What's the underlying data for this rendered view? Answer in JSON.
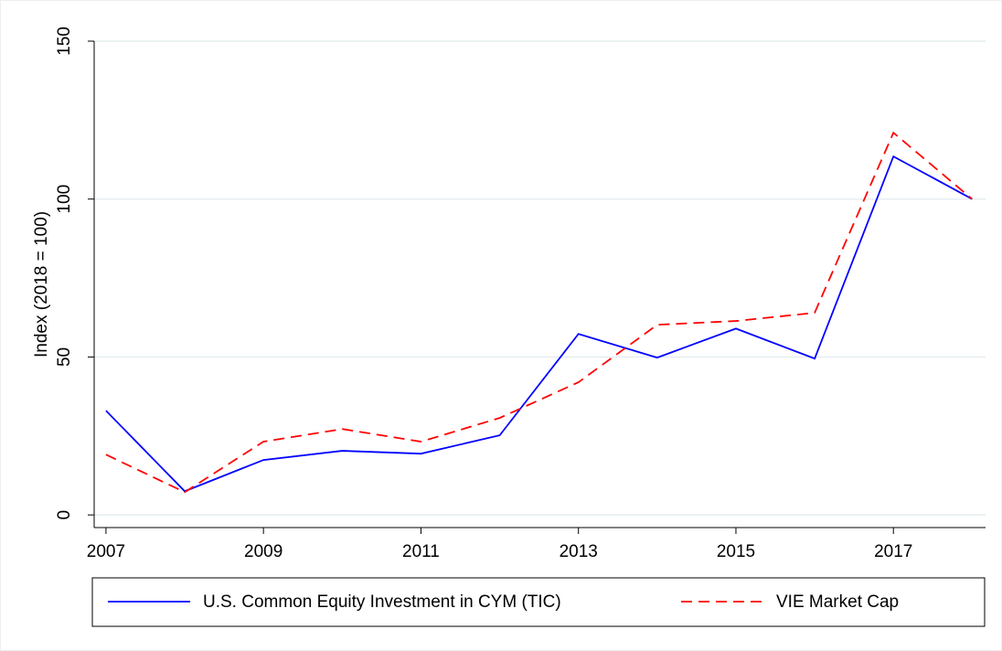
{
  "chart_data": {
    "type": "line",
    "y_label": "Index (2018 = 100)",
    "x": [
      2007,
      2008,
      2009,
      2010,
      2011,
      2012,
      2013,
      2014,
      2015,
      2016,
      2017,
      2018
    ],
    "series": [
      {
        "name": "U.S. Common Equity Investment in CYM (TIC)",
        "color": "#0000ff",
        "dash": "solid",
        "values": [
          33,
          7.5,
          17.4,
          20.3,
          19.4,
          25.2,
          57.3,
          49.8,
          59,
          49.5,
          113.5,
          100
        ]
      },
      {
        "name": "VIE Market Cap",
        "color": "#ff0000",
        "dash": "dashed",
        "values": [
          19.1,
          7.2,
          23.2,
          27.2,
          23.2,
          30.7,
          42,
          60.2,
          61.4,
          64,
          121,
          100
        ]
      }
    ],
    "xlim": [
      2006.85,
      2018.17
    ],
    "xticks": [
      2007,
      2009,
      2011,
      2013,
      2015,
      2017
    ],
    "ylim": [
      -4,
      150
    ],
    "yticks": [
      0,
      50,
      100,
      150
    ],
    "grid": true,
    "legend": "bottom"
  }
}
